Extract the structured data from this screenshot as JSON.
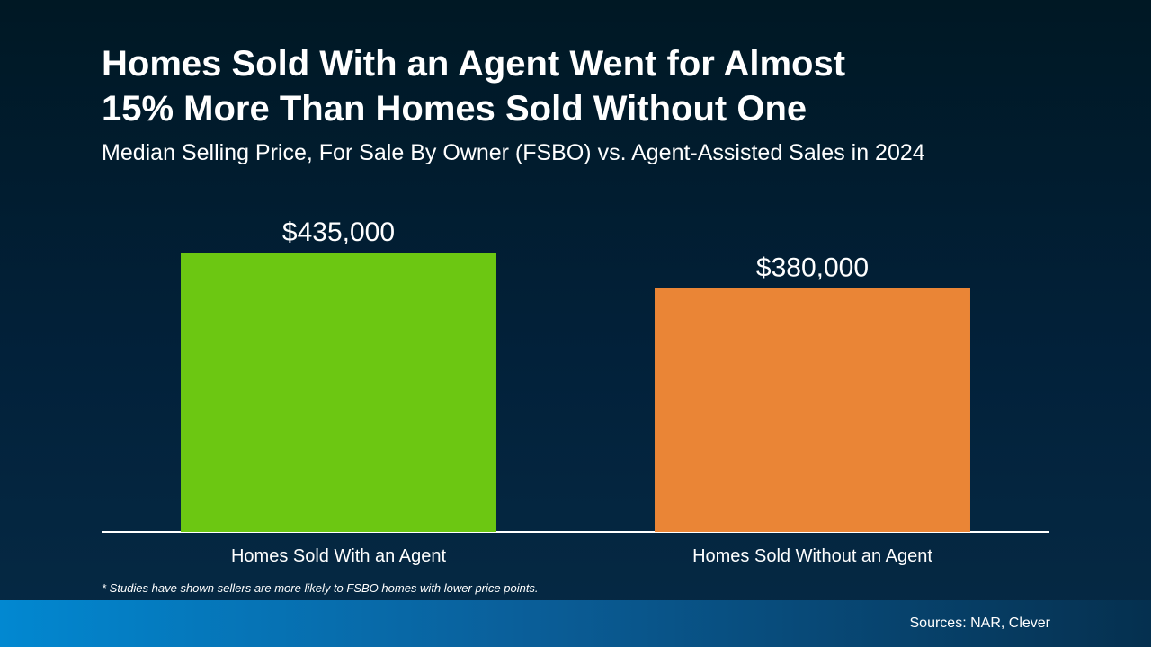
{
  "chart_data": {
    "type": "bar",
    "title": "Homes Sold With an Agent Went for Almost 15% More Than Homes Sold Without One",
    "subtitle": "Median Selling Price, For Sale By Owner (FSBO) vs. Agent-Assisted Sales in 2024",
    "categories": [
      "Homes Sold With an Agent",
      "Homes Sold Without an Agent"
    ],
    "values": [
      435000,
      380000
    ],
    "value_labels": [
      "$435,000",
      "$380,000"
    ],
    "colors": [
      "#6cc712",
      "#ea8536"
    ],
    "footnote": "* Studies have shown sellers are more likely to FSBO homes with lower price points.",
    "source": "Sources: NAR, Clever"
  }
}
